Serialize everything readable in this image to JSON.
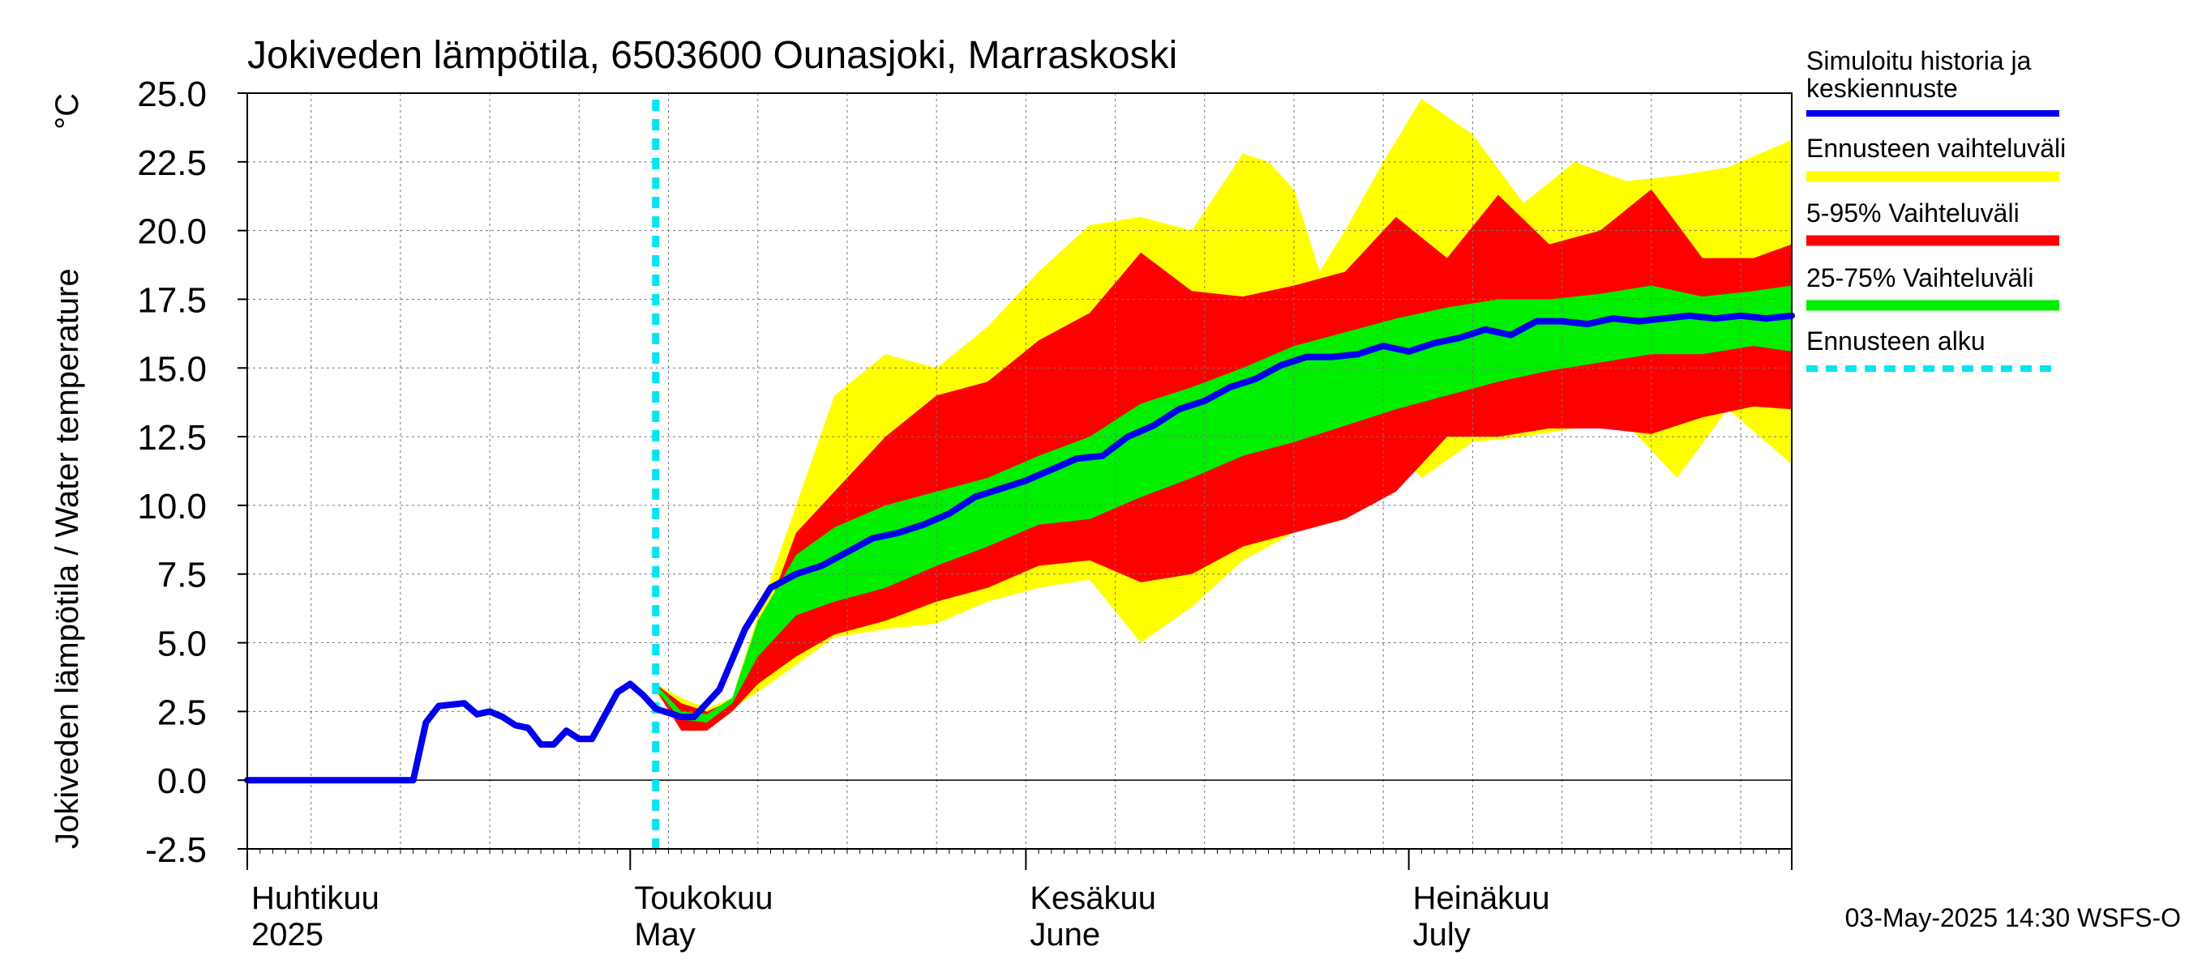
{
  "chart_data": {
    "type": "area",
    "title": "Jokiveden lämpötila, 6503600 Ounasjoki, Marraskoski",
    "ylabel": "Jokiveden lämpötila / Water temperature",
    "yunit": "°C",
    "ylim": [
      -2.5,
      25.0
    ],
    "yticks": [
      -2.5,
      0.0,
      2.5,
      5.0,
      7.5,
      10.0,
      12.5,
      15.0,
      17.5,
      20.0,
      22.5,
      25.0
    ],
    "ytick_labels": [
      "-2.5",
      "0.0",
      "2.5",
      "5.0",
      "7.5",
      "10.0",
      "12.5",
      "15.0",
      "17.5",
      "20.0",
      "22.5",
      "25.0"
    ],
    "xlim": [
      "2025-04-01",
      "2025-07-31"
    ],
    "month_labels": [
      {
        "date": "2025-04-01",
        "fi": "Huhtikuu",
        "en": "2025"
      },
      {
        "date": "2025-05-01",
        "fi": "Toukokuu",
        "en": "May"
      },
      {
        "date": "2025-06-01",
        "fi": "Kesäkuu",
        "en": "June"
      },
      {
        "date": "2025-07-01",
        "fi": "Heinäkuu",
        "en": "July"
      }
    ],
    "grid": true,
    "forecast_start": "2025-05-03",
    "footer": "03-May-2025 14:30 WSFS-O",
    "legend": [
      {
        "label": "Simuloitu historia ja keskiennuste",
        "color": "#0000ee",
        "style": "line"
      },
      {
        "label": "Ennusteen vaihteluväli",
        "color": "#ffff00",
        "style": "band"
      },
      {
        "label": "5-95% Vaihteluväli",
        "color": "#ff0000",
        "style": "band"
      },
      {
        "label": "25-75% Vaihteluväli",
        "color": "#00ee00",
        "style": "band"
      },
      {
        "label": "Ennusteen alku",
        "color": "#00e5ee",
        "style": "dashed"
      }
    ],
    "series": [
      {
        "name": "Simuloitu historia ja keskiennuste",
        "x": [
          "2025-04-01",
          "2025-04-14",
          "2025-04-15",
          "2025-04-16",
          "2025-04-18",
          "2025-04-19",
          "2025-04-20",
          "2025-04-21",
          "2025-04-22",
          "2025-04-23",
          "2025-04-24",
          "2025-04-25",
          "2025-04-26",
          "2025-04-27",
          "2025-04-28",
          "2025-04-30",
          "2025-05-01",
          "2025-05-02",
          "2025-05-03",
          "2025-05-05",
          "2025-05-06",
          "2025-05-07",
          "2025-05-08",
          "2025-05-10",
          "2025-05-12",
          "2025-05-14",
          "2025-05-16",
          "2025-05-18",
          "2025-05-20",
          "2025-05-22",
          "2025-05-24",
          "2025-05-26",
          "2025-05-28",
          "2025-05-30",
          "2025-06-01",
          "2025-06-03",
          "2025-06-05",
          "2025-06-07",
          "2025-06-09",
          "2025-06-11",
          "2025-06-13",
          "2025-06-15",
          "2025-06-17",
          "2025-06-19",
          "2025-06-21",
          "2025-06-23",
          "2025-06-25",
          "2025-06-27",
          "2025-06-29",
          "2025-07-01",
          "2025-07-03",
          "2025-07-05",
          "2025-07-07",
          "2025-07-09",
          "2025-07-11",
          "2025-07-13",
          "2025-07-15",
          "2025-07-17",
          "2025-07-19",
          "2025-07-21",
          "2025-07-23",
          "2025-07-25",
          "2025-07-27",
          "2025-07-29",
          "2025-07-31"
        ],
        "values": [
          0.0,
          0.0,
          2.1,
          2.7,
          2.8,
          2.4,
          2.5,
          2.3,
          2.0,
          1.9,
          1.3,
          1.3,
          1.8,
          1.5,
          1.5,
          3.2,
          3.5,
          3.1,
          2.6,
          2.3,
          2.3,
          2.8,
          3.3,
          5.5,
          7.0,
          7.5,
          7.8,
          8.3,
          8.8,
          9.0,
          9.3,
          9.7,
          10.3,
          10.6,
          10.9,
          11.3,
          11.7,
          11.8,
          12.5,
          12.9,
          13.5,
          13.8,
          14.3,
          14.6,
          15.1,
          15.4,
          15.4,
          15.5,
          15.8,
          15.6,
          15.9,
          16.1,
          16.4,
          16.2,
          16.7,
          16.7,
          16.6,
          16.8,
          16.7,
          16.8,
          16.9,
          16.8,
          16.9,
          16.8,
          16.9
        ]
      },
      {
        "name": "Ennusteen vaihteluväli",
        "x": [
          "2025-05-03",
          "2025-05-05",
          "2025-05-07",
          "2025-05-09",
          "2025-05-11",
          "2025-05-14",
          "2025-05-17",
          "2025-05-21",
          "2025-05-25",
          "2025-05-29",
          "2025-06-02",
          "2025-06-06",
          "2025-06-10",
          "2025-06-14",
          "2025-06-18",
          "2025-06-20",
          "2025-06-22",
          "2025-06-24",
          "2025-06-26",
          "2025-06-29",
          "2025-07-02",
          "2025-07-06",
          "2025-07-10",
          "2025-07-14",
          "2025-07-18",
          "2025-07-22",
          "2025-07-26",
          "2025-07-31"
        ],
        "lower": [
          3.2,
          2.0,
          1.9,
          2.6,
          3.2,
          4.2,
          5.2,
          5.5,
          5.7,
          6.5,
          7.0,
          7.3,
          5.0,
          6.3,
          8.0,
          8.5,
          9.0,
          9.5,
          10.0,
          12.5,
          11.0,
          12.3,
          12.5,
          12.8,
          13.0,
          11.0,
          13.5,
          11.5
        ],
        "upper": [
          3.5,
          3.0,
          2.6,
          3.0,
          6.0,
          10.0,
          14.0,
          15.5,
          15.0,
          16.5,
          18.5,
          20.2,
          20.5,
          20.0,
          22.8,
          22.5,
          21.5,
          18.5,
          20.0,
          22.5,
          24.8,
          23.5,
          21.0,
          22.5,
          21.8,
          22.0,
          22.3,
          23.3
        ]
      },
      {
        "name": "5-95% Vaihteluväli",
        "x": [
          "2025-05-03",
          "2025-05-05",
          "2025-05-07",
          "2025-05-09",
          "2025-05-11",
          "2025-05-14",
          "2025-05-17",
          "2025-05-21",
          "2025-05-25",
          "2025-05-29",
          "2025-06-02",
          "2025-06-06",
          "2025-06-10",
          "2025-06-14",
          "2025-06-18",
          "2025-06-22",
          "2025-06-26",
          "2025-06-30",
          "2025-07-04",
          "2025-07-08",
          "2025-07-12",
          "2025-07-16",
          "2025-07-20",
          "2025-07-24",
          "2025-07-28",
          "2025-07-31"
        ],
        "lower": [
          3.3,
          1.8,
          1.8,
          2.5,
          3.5,
          4.5,
          5.3,
          5.8,
          6.5,
          7.0,
          7.8,
          8.0,
          7.2,
          7.5,
          8.5,
          9.0,
          9.5,
          10.5,
          12.5,
          12.5,
          12.8,
          12.8,
          12.6,
          13.2,
          13.6,
          13.5
        ],
        "upper": [
          3.5,
          2.8,
          2.5,
          2.9,
          5.2,
          9.0,
          10.5,
          12.5,
          14.0,
          14.5,
          16.0,
          17.0,
          19.2,
          17.8,
          17.6,
          18.0,
          18.5,
          20.5,
          19.0,
          21.3,
          19.5,
          20.0,
          21.5,
          19.0,
          19.0,
          19.5
        ]
      },
      {
        "name": "25-75% Vaihteluväli",
        "x": [
          "2025-05-03",
          "2025-05-05",
          "2025-05-07",
          "2025-05-09",
          "2025-05-11",
          "2025-05-14",
          "2025-05-17",
          "2025-05-21",
          "2025-05-25",
          "2025-05-29",
          "2025-06-02",
          "2025-06-06",
          "2025-06-10",
          "2025-06-14",
          "2025-06-18",
          "2025-06-22",
          "2025-06-26",
          "2025-06-30",
          "2025-07-04",
          "2025-07-08",
          "2025-07-12",
          "2025-07-16",
          "2025-07-20",
          "2025-07-24",
          "2025-07-28",
          "2025-07-31"
        ],
        "lower": [
          3.3,
          2.2,
          2.1,
          2.8,
          4.5,
          6.0,
          6.5,
          7.0,
          7.8,
          8.5,
          9.3,
          9.5,
          10.3,
          11.0,
          11.8,
          12.3,
          12.9,
          13.5,
          14.0,
          14.5,
          14.9,
          15.2,
          15.5,
          15.5,
          15.8,
          15.6
        ],
        "upper": [
          3.5,
          2.5,
          2.4,
          3.0,
          5.8,
          8.2,
          9.2,
          10.0,
          10.5,
          11.0,
          11.8,
          12.5,
          13.7,
          14.3,
          15.0,
          15.8,
          16.3,
          16.8,
          17.2,
          17.5,
          17.5,
          17.7,
          18.0,
          17.6,
          17.8,
          18.0
        ]
      }
    ]
  }
}
